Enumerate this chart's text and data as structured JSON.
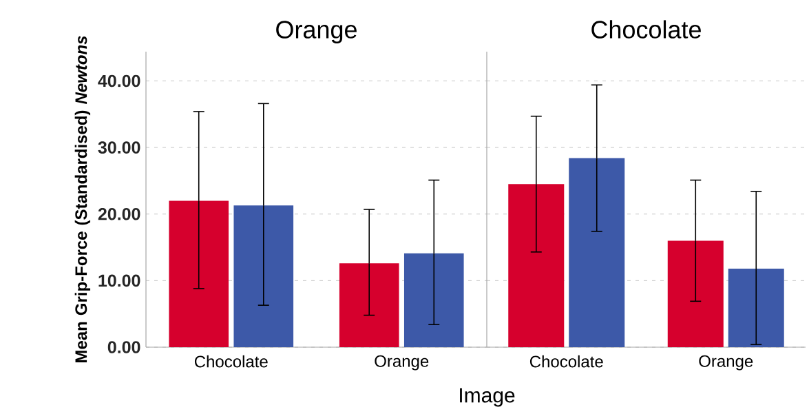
{
  "chart_data": [
    {
      "type": "bar",
      "title": "Orange",
      "xlabel": "Image",
      "ylabel": "Mean Grip-Force (Standardised) *Newtons*",
      "categories": [
        "Chocolate",
        "Orange"
      ],
      "series": [
        {
          "color": "#d6002d",
          "values": [
            22.0,
            12.6
          ],
          "errors": [
            [
              8.8,
              35.4
            ],
            [
              4.8,
              20.7
            ]
          ]
        },
        {
          "color": "#3d59a8",
          "values": [
            21.3,
            14.1
          ],
          "errors": [
            [
              6.3,
              36.6
            ],
            [
              3.4,
              25.1
            ]
          ]
        }
      ],
      "ylim": [
        0,
        44.4
      ],
      "yticks": [
        {
          "value": 0,
          "label": "0.00"
        },
        {
          "value": 10,
          "label": "10.00"
        },
        {
          "value": 20,
          "label": "20.00"
        },
        {
          "value": 30,
          "label": "30.00"
        },
        {
          "value": 40,
          "label": "40.00"
        }
      ],
      "grid": "y"
    },
    {
      "type": "bar",
      "title": "Chocolate",
      "categories": [
        "Chocolate",
        "Orange"
      ],
      "series": [
        {
          "color": "#d6002d",
          "values": [
            24.5,
            16.0
          ],
          "errors": [
            [
              14.3,
              34.7
            ],
            [
              6.9,
              25.1
            ]
          ]
        },
        {
          "color": "#3d59a8",
          "values": [
            28.4,
            11.8
          ],
          "errors": [
            [
              17.4,
              39.4
            ],
            [
              0.4,
              23.4
            ]
          ]
        }
      ],
      "ylim": [
        0,
        44.4
      ],
      "yticks": [
        {
          "value": 0,
          "label": null
        },
        {
          "value": 10,
          "label": null
        },
        {
          "value": 20,
          "label": null
        },
        {
          "value": 30,
          "label": null
        },
        {
          "value": 40,
          "label": null
        }
      ],
      "grid": "y",
      "tick_labels": "x"
    }
  ]
}
